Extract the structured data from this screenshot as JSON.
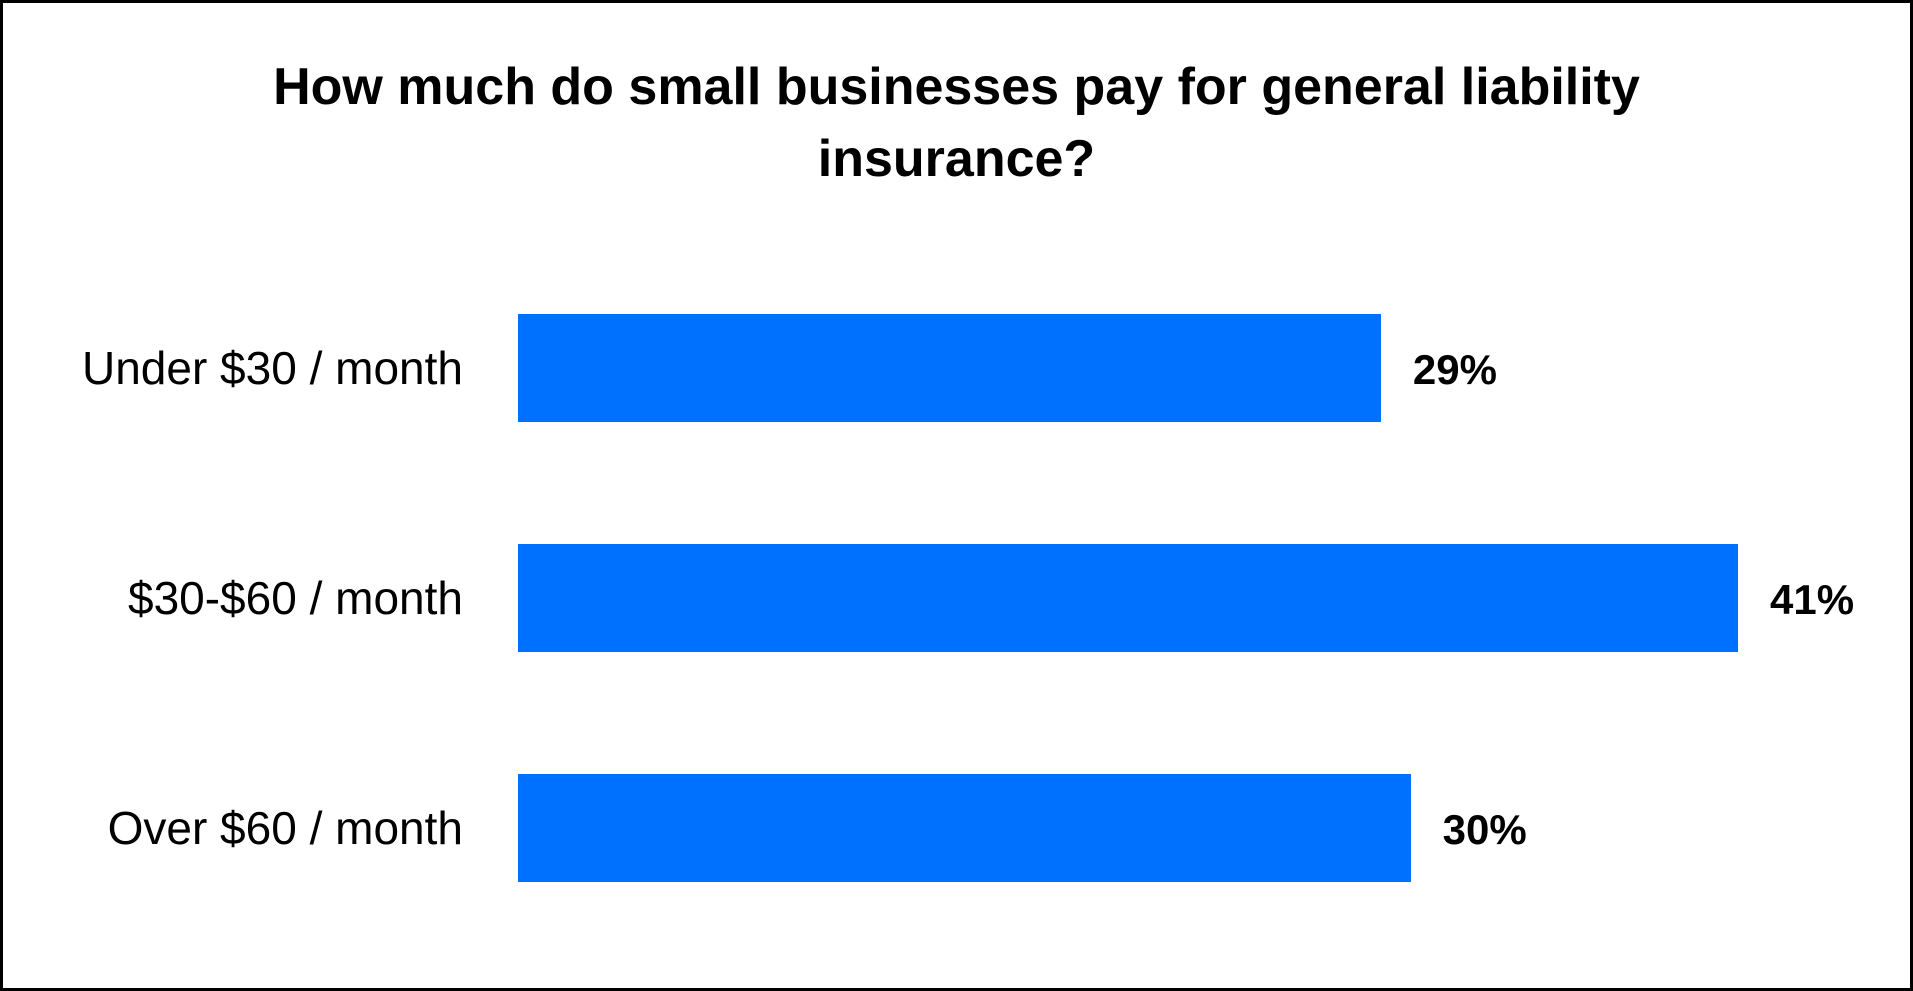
{
  "chart_data": {
    "type": "bar",
    "orientation": "horizontal",
    "title": "How much do small businesses pay for general liability insurance?",
    "categories": [
      "Under $30 / month",
      "$30-$60 / month",
      "Over $60 / month"
    ],
    "values": [
      29,
      41,
      30
    ],
    "value_labels": [
      "29%",
      "41%",
      "30%"
    ],
    "xlabel": "",
    "ylabel": "",
    "unit": "%",
    "grid": false,
    "legend": null,
    "bar_color": "#0070FF"
  },
  "labels": {
    "title": "How much do small businesses pay for general liability insurance?",
    "rows": [
      {
        "category": "Under $30 / month",
        "value": "29%"
      },
      {
        "category": "$30-$60 / month",
        "value": "41%"
      },
      {
        "category": "Over $60 / month",
        "value": "30%"
      }
    ]
  }
}
